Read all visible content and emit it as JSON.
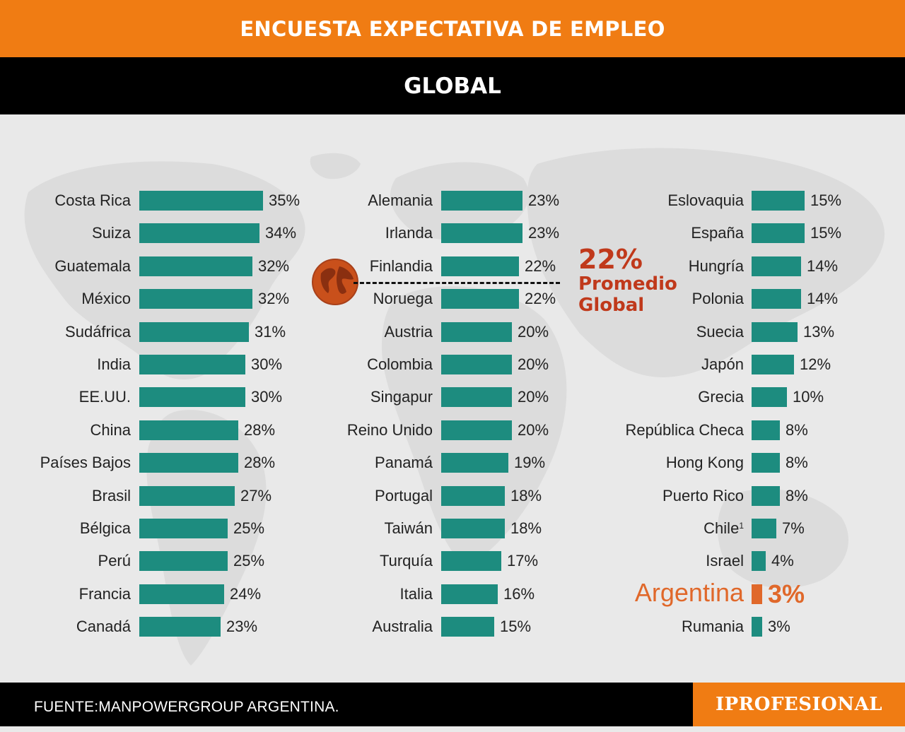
{
  "header": {
    "title": "ENCUESTA EXPECTATIVA DE EMPLEO",
    "region": "GLOBAL"
  },
  "average": {
    "value": "22%",
    "label": "Promedio Global"
  },
  "footer": {
    "source": "FUENTE:MANPOWERGROUP ARGENTINA.",
    "brand": "IPROFESIONAL"
  },
  "colors": {
    "banner": "#f07c13",
    "band": "#000000",
    "bar": "#1d8c7f",
    "highlight": "#e0682a",
    "average": "#c0391b"
  },
  "chart_data": {
    "type": "bar",
    "orientation": "horizontal",
    "unit": "%",
    "highlight": "Argentina",
    "columns": [
      {
        "categories": [
          "Costa Rica",
          "Suiza",
          "Guatemala",
          "México",
          "Sudáfrica",
          "India",
          "EE.UU.",
          "China",
          "Países Bajos",
          "Brasil",
          "Bélgica",
          "Perú",
          "Francia",
          "Canadá"
        ],
        "values": [
          35,
          34,
          32,
          32,
          31,
          30,
          30,
          28,
          28,
          27,
          25,
          25,
          24,
          23
        ],
        "labels": [
          "35%",
          "34%",
          "32%",
          "32%",
          "31%",
          "30%",
          "30%",
          "28%",
          "28%",
          "27%",
          "25%",
          "25%",
          "24%",
          "23%"
        ]
      },
      {
        "categories": [
          "Alemania",
          "Irlanda",
          "Finlandia",
          "Noruega",
          "Austria",
          "Colombia",
          "Singapur",
          "Reino Unido",
          "Panamá",
          "Portugal",
          "Taiwán",
          "Turquía",
          "Italia",
          "Australia"
        ],
        "values": [
          23,
          23,
          22,
          22,
          20,
          20,
          20,
          20,
          19,
          18,
          18,
          17,
          16,
          15
        ],
        "labels": [
          "23%",
          "23%",
          "22%",
          "22%",
          "20%",
          "20%",
          "20%",
          "20%",
          "19%",
          "18%",
          "18%",
          "17%",
          "16%",
          "15%"
        ]
      },
      {
        "categories": [
          "Eslovaquia",
          "España",
          "Hungría",
          "Polonia",
          "Suecia",
          "Japón",
          "Grecia",
          "República Checa",
          "Hong Kong",
          "Puerto Rico",
          "Chile",
          "Israel",
          "Argentina",
          "Rumania"
        ],
        "values": [
          15,
          15,
          14,
          14,
          13,
          12,
          10,
          8,
          8,
          8,
          7,
          4,
          3,
          3
        ],
        "labels": [
          "15%",
          "15%",
          "14%",
          "14%",
          "13%",
          "12%",
          "10%",
          "8%",
          "8%",
          "8%",
          "7%",
          "4%",
          "3%",
          "3%"
        ],
        "footnotes": {
          "Chile": "1"
        }
      }
    ]
  }
}
